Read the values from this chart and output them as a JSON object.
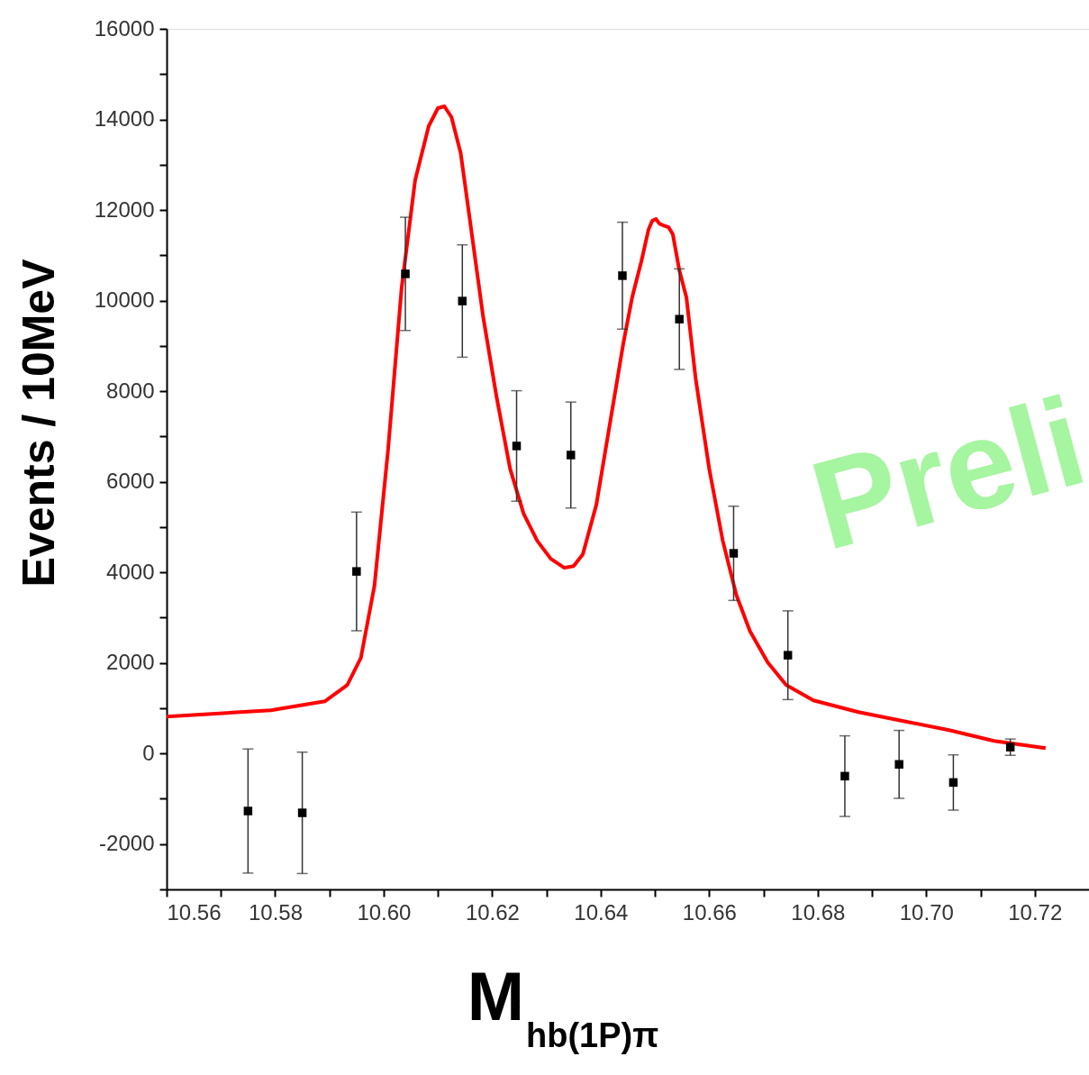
{
  "chart_data": {
    "type": "scatter",
    "xlabel": "M$_{hb(1P)π}$",
    "ylabel": "Events / 10MeV",
    "annotations": [
      "Preli"
    ],
    "xlim": [
      10.56,
      10.73
    ],
    "ylim": [
      -3000,
      16000
    ],
    "xticks": [
      {
        "value": 10.56,
        "label": "10.56"
      },
      {
        "value": 10.57,
        "label": null
      },
      {
        "value": 10.58,
        "label": "10.58"
      },
      {
        "value": 10.59,
        "label": null
      },
      {
        "value": 10.6,
        "label": "10.60"
      },
      {
        "value": 10.61,
        "label": null
      },
      {
        "value": 10.62,
        "label": "10.62"
      },
      {
        "value": 10.63,
        "label": null
      },
      {
        "value": 10.64,
        "label": "10.64"
      },
      {
        "value": 10.65,
        "label": null
      },
      {
        "value": 10.66,
        "label": "10.66"
      },
      {
        "value": 10.67,
        "label": null
      },
      {
        "value": 10.68,
        "label": "10.68"
      },
      {
        "value": 10.69,
        "label": null
      },
      {
        "value": 10.7,
        "label": "10.70"
      },
      {
        "value": 10.71,
        "label": null
      },
      {
        "value": 10.72,
        "label": "10.72"
      }
    ],
    "yticks": [
      {
        "value": -3000,
        "label": null
      },
      -2000,
      {
        "value": -1000,
        "label": null
      },
      0,
      {
        "value": 1000,
        "label": null
      },
      2000,
      {
        "value": 3000,
        "label": null
      },
      4000,
      {
        "value": 5000,
        "label": null
      },
      6000,
      {
        "value": 7000,
        "label": null
      },
      8000,
      {
        "value": 9000,
        "label": null
      },
      10000,
      {
        "value": 11000,
        "label": null
      },
      12000,
      {
        "value": 13000,
        "label": null
      },
      14000,
      {
        "value": 15000,
        "label": null
      },
      16000
    ],
    "grid": false,
    "series": [
      {
        "type": "line",
        "color": "#ff0000",
        "line_style": "solid",
        "marker": "none",
        "x": [
          10.56,
          10.5792,
          10.5892,
          10.5933,
          10.5958,
          10.5983,
          10.6008,
          10.6033,
          10.6058,
          10.6083,
          10.61,
          10.6112,
          10.6125,
          10.6142,
          10.6158,
          10.6183,
          10.6208,
          10.6233,
          10.6258,
          10.6283,
          10.6308,
          10.6333,
          10.635,
          10.6367,
          10.6392,
          10.6417,
          10.6442,
          10.6458,
          10.6475,
          10.6488,
          10.6495,
          10.6502,
          10.6508,
          10.6515,
          10.6525,
          10.6533,
          10.6545,
          10.6558,
          10.6575,
          10.66,
          10.6625,
          10.665,
          10.6675,
          10.6708,
          10.6742,
          10.6792,
          10.6875,
          10.6958,
          10.7042,
          10.7125,
          10.722
        ],
        "values": [
          816,
          955,
          1154,
          1512,
          2109,
          3701,
          6687,
          10269,
          12657,
          13851,
          14249,
          14289,
          14050,
          13254,
          11861,
          9672,
          7881,
          6289,
          5294,
          4697,
          4299,
          4100,
          4139,
          4398,
          5493,
          7284,
          9075,
          10070,
          10866,
          11562,
          11761,
          11801,
          11701,
          11662,
          11622,
          11463,
          10667,
          10070,
          8279,
          6289,
          4697,
          3502,
          2706,
          2010,
          1512,
          1174,
          915,
          716,
          517,
          279,
          119
        ]
      },
      {
        "color": "#000000",
        "marker": "square",
        "x": [
          10.575,
          10.585,
          10.595,
          10.604,
          10.6145,
          10.6245,
          10.6345,
          10.644,
          10.6545,
          10.6645,
          10.6745,
          10.685,
          10.695,
          10.705,
          10.7155
        ],
        "values": [
          -1270,
          -1310,
          4020,
          10590,
          9990,
          6790,
          6590,
          10550,
          9590,
          4420,
          2170,
          -500,
          -240,
          -640,
          140
        ],
        "errors": [
          1370,
          1340,
          1310,
          1250,
          1240,
          1220,
          1170,
          1180,
          1110,
          1040,
          980,
          890,
          750,
          610,
          180
        ]
      }
    ]
  }
}
